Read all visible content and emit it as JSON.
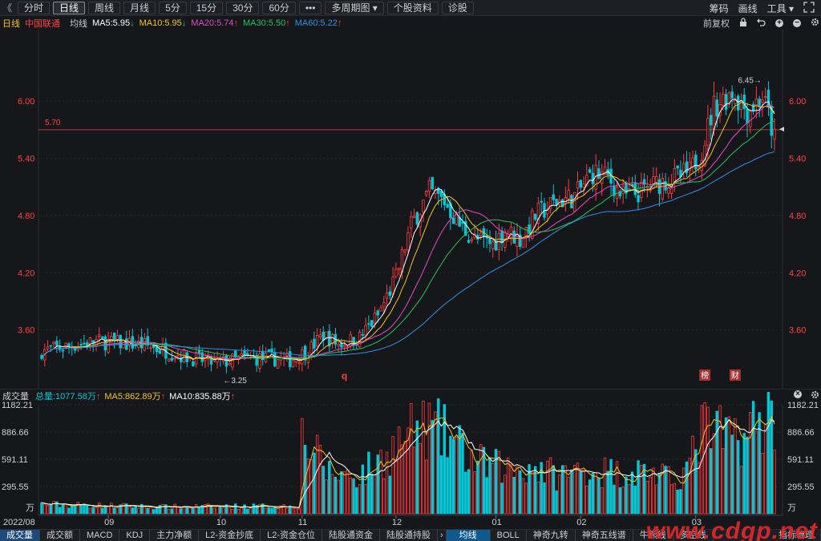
{
  "toolbar": {
    "back_glyph": "《",
    "periods": [
      "分时",
      "日线",
      "周线",
      "月线",
      "5分",
      "15分",
      "30分",
      "60分",
      "•••",
      "多周期图 ▾",
      "个股资料",
      "诊股"
    ],
    "active_period": "日线",
    "right_links": [
      "筹码",
      "画线",
      "工具 ▾"
    ]
  },
  "ma_bar": {
    "period": "日线",
    "stock_name": "中国联通",
    "ma_type": "均线",
    "ma5": "MA5:5.95",
    "ma10": "MA10:5.95",
    "ma20": "MA20:5.74",
    "ma30": "MA30:5.50",
    "ma60": "MA60:5.22",
    "adjust": "前复权"
  },
  "volume_bar": {
    "label": "成交量",
    "total": "总量:1077.58万",
    "ma5": "MA5:862.89万",
    "ma10": "MA10:835.88万"
  },
  "colors": {
    "up": "#ff3b3b",
    "down": "#00c8d6",
    "ma5": "#ffffff",
    "ma10": "#f2c41a",
    "ma20": "#e34ac8",
    "ma30": "#22c45a",
    "ma60": "#2f8fe6",
    "ref_line": "#b83a3a"
  },
  "price_axis": {
    "ticks": [
      "6.00",
      "5.40",
      "4.80",
      "4.20",
      "3.60"
    ],
    "ref_line_label": "5.70",
    "max_label": "6.45",
    "min_label": "3.25"
  },
  "volume_axis": {
    "ticks": [
      "1182.21",
      "886.66",
      "591.11",
      "295.55"
    ],
    "unit": "万"
  },
  "date_axis": [
    "2022/08",
    "09",
    "10",
    "11",
    "12",
    "01",
    "02",
    "03"
  ],
  "markers": {
    "q": "q",
    "bang": "榜",
    "cai": "财"
  },
  "bottom_tabs": [
    "成交量",
    "成交额",
    "MACD",
    "KDJ",
    "主力净额",
    "L2-资金抄底",
    "L2-资金仓位",
    "陆股通资金",
    "陆股通持股",
    "均线",
    "BOLL",
    "神奇九转",
    "神奇五线谱",
    "牛熊线",
    "多空线",
    "指标管理"
  ],
  "watermark": "www.cdgp.net",
  "chart_data": {
    "type": "candlestick",
    "title": "中国联通 日线",
    "period_labels": [
      "2022/08",
      "09",
      "10",
      "11",
      "12",
      "01",
      "02",
      "03"
    ],
    "ylim": [
      3.0,
      6.7
    ],
    "y_ticks": [
      3.6,
      4.2,
      4.8,
      5.4,
      6.0
    ],
    "reference_line": 5.7,
    "max": 6.45,
    "min": 3.25,
    "anchors": [
      [
        0,
        3.38
      ],
      [
        18,
        3.48
      ],
      [
        34,
        3.44
      ],
      [
        50,
        3.3
      ],
      [
        58,
        3.25
      ],
      [
        66,
        3.3
      ],
      [
        75,
        3.3
      ],
      [
        82,
        3.28
      ],
      [
        88,
        3.38
      ],
      [
        93,
        3.55
      ],
      [
        98,
        3.45
      ],
      [
        105,
        3.52
      ],
      [
        111,
        3.75
      ],
      [
        117,
        4.15
      ],
      [
        122,
        4.7
      ],
      [
        128,
        5.05
      ],
      [
        133,
        4.95
      ],
      [
        138,
        4.7
      ],
      [
        143,
        4.55
      ],
      [
        149,
        4.5
      ],
      [
        153,
        4.65
      ],
      [
        158,
        4.55
      ],
      [
        163,
        4.8
      ],
      [
        170,
        4.95
      ],
      [
        176,
        5.0
      ],
      [
        182,
        5.25
      ],
      [
        187,
        5.2
      ],
      [
        192,
        5.0
      ],
      [
        198,
        5.05
      ],
      [
        204,
        5.15
      ],
      [
        210,
        5.2
      ],
      [
        214,
        5.25
      ],
      [
        218,
        5.5
      ],
      [
        222,
        5.95
      ],
      [
        228,
        6.1
      ],
      [
        233,
        5.9
      ],
      [
        238,
        6.05
      ],
      [
        240,
        5.85
      ],
      [
        242,
        5.6
      ]
    ],
    "volume_ylim": [
      0,
      1182.21
    ],
    "volume_ticks": [
      295.55,
      591.11,
      886.66,
      1182.21
    ],
    "volume_unit": "万",
    "volume_anchors": [
      [
        0,
        110
      ],
      [
        40,
        80
      ],
      [
        85,
        90
      ],
      [
        86,
        900
      ],
      [
        95,
        480
      ],
      [
        105,
        450
      ],
      [
        113,
        650
      ],
      [
        120,
        900
      ],
      [
        128,
        1020
      ],
      [
        135,
        880
      ],
      [
        143,
        600
      ],
      [
        155,
        520
      ],
      [
        163,
        550
      ],
      [
        170,
        450
      ],
      [
        180,
        520
      ],
      [
        190,
        480
      ],
      [
        200,
        500
      ],
      [
        208,
        380
      ],
      [
        214,
        560
      ],
      [
        218,
        1000
      ],
      [
        225,
        900
      ],
      [
        233,
        950
      ],
      [
        240,
        1150
      ],
      [
        242,
        1150
      ]
    ],
    "series": [
      {
        "name": "MA5",
        "value": 5.95
      },
      {
        "name": "MA10",
        "value": 5.95
      },
      {
        "name": "MA20",
        "value": 5.74
      },
      {
        "name": "MA30",
        "value": 5.5
      },
      {
        "name": "MA60",
        "value": 5.22
      }
    ],
    "volume_series": [
      {
        "name": "总量",
        "value": 1077.58
      },
      {
        "name": "MA5",
        "value": 862.89
      },
      {
        "name": "MA10",
        "value": 835.88
      }
    ]
  }
}
